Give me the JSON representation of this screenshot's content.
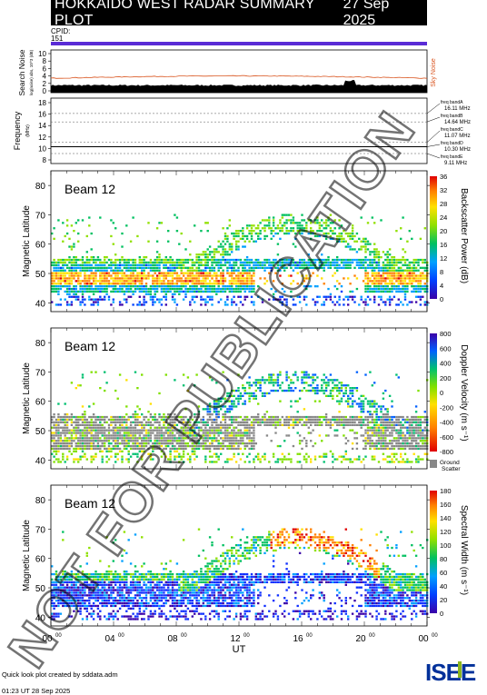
{
  "header": {
    "title": "HOKKAIDO WEST RADAR SUMMARY PLOT",
    "date": "27 Sep 2025"
  },
  "cpid": {
    "label": "CPID:",
    "value": "151"
  },
  "noise_panel": {
    "ylabel": "Search Noise",
    "ylabel_sub": "log(noise) abs, 10^3 (dB)",
    "right_label": "Sky Noise",
    "ticks": [
      "10",
      "8",
      "6",
      "4",
      "2",
      "0"
    ],
    "sky_noise_level": 3.3,
    "search_noise_level": 1.3
  },
  "freq_panel": {
    "ylabel": "Frequency",
    "ylabel_sub": "(MHz)",
    "ticks": [
      "18",
      "16",
      "14",
      "12",
      "10",
      "8"
    ],
    "bands": [
      {
        "name": "freq bandA",
        "value": "16.11 MHz"
      },
      {
        "name": "freq bandB",
        "value": "14.64 MHz"
      },
      {
        "name": "freq bandC",
        "value": "11.07 MHz"
      },
      {
        "name": "freq bandD",
        "value": "10.30 MHz"
      },
      {
        "name": "freq bandE",
        "value": "9.11 MHz"
      }
    ]
  },
  "watermark": "NOT FOR PUBLICATION",
  "footer": {
    "credit": "Quick look plot created by sddata.adm",
    "timestamp": "01:23 UT 28 Sep 2025",
    "logo_text": "ISEE"
  },
  "colors": {
    "purple": "#5a2bd6",
    "ground_scatter": "#888888",
    "sky_noise": "#d9541e"
  },
  "chart_data": [
    {
      "type": "heatmap",
      "panel": "power",
      "beam_label": "Beam 12",
      "ylabel": "Magnetic Latitude",
      "yticks": [
        "80",
        "70",
        "60",
        "50",
        "40"
      ],
      "ylim": [
        37,
        85
      ],
      "colorbar_label": "Backscatter Power (dB)",
      "colorbar_ticks": [
        "36",
        "32",
        "28",
        "24",
        "20",
        "16",
        "12",
        "8",
        "4",
        "0"
      ],
      "echo_region_lat": [
        40,
        72
      ],
      "peak_lat": 48
    },
    {
      "type": "heatmap",
      "panel": "velocity",
      "beam_label": "Beam 12",
      "ylabel": "Magnetic Latitude",
      "yticks": [
        "80",
        "70",
        "60",
        "50",
        "40"
      ],
      "ylim": [
        37,
        85
      ],
      "colorbar_label": "Doppler Velocity (m s⁻¹)",
      "colorbar_ticks": [
        "800",
        "600",
        "400",
        "200",
        "0",
        "-200",
        "-400",
        "-600",
        "-800"
      ],
      "ground_scatter_label": [
        "Ground",
        "Scatter"
      ]
    },
    {
      "type": "heatmap",
      "panel": "width",
      "beam_label": "Beam 12",
      "ylabel": "Magnetic Latitude",
      "yticks": [
        "80",
        "70",
        "60",
        "50",
        "40"
      ],
      "ylim": [
        37,
        85
      ],
      "colorbar_label": "Spectral Width (m s⁻¹)",
      "colorbar_ticks": [
        "180",
        "160",
        "140",
        "120",
        "100",
        "80",
        "60",
        "40",
        "20",
        "0"
      ],
      "xticks": [
        "00",
        "04",
        "08",
        "12",
        "16",
        "20",
        "00"
      ],
      "xtick_sup": "00",
      "xlabel": "UT",
      "xlim": [
        0,
        24
      ]
    }
  ]
}
